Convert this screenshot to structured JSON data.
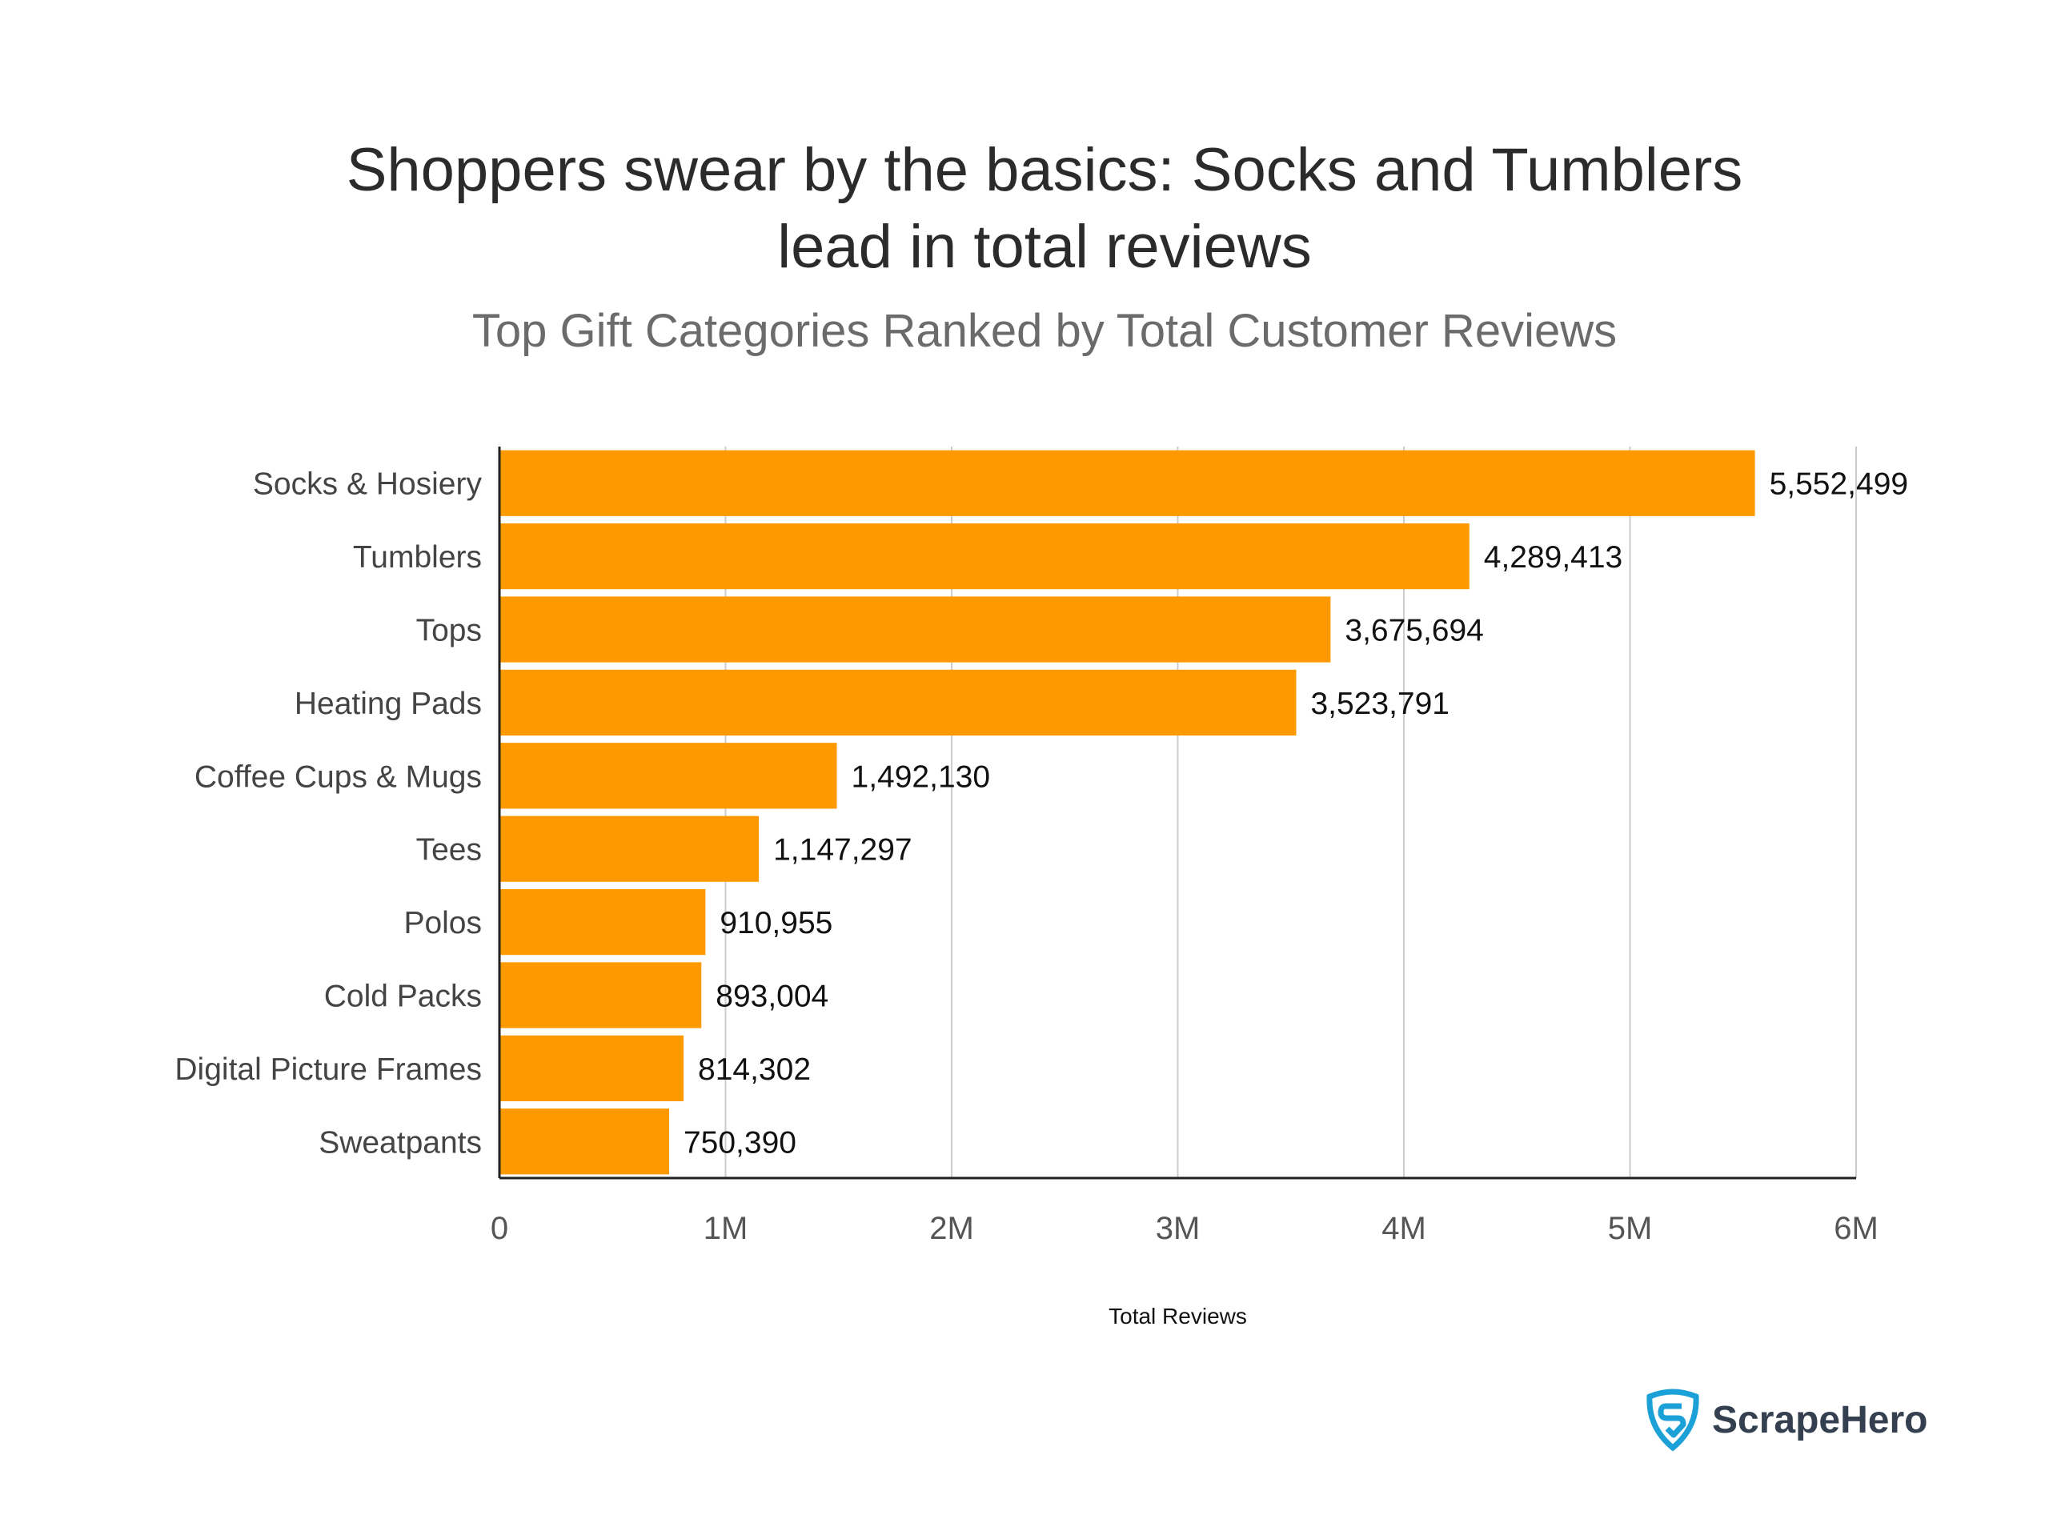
{
  "chart_data": {
    "type": "bar",
    "orientation": "horizontal",
    "title": "Shoppers swear by the basics: Socks and Tumblers lead in total reviews",
    "title_lines": [
      "Shoppers swear by the basics: Socks and Tumblers",
      "lead in total reviews"
    ],
    "subtitle": "Top Gift Categories Ranked by Total Customer Reviews",
    "xlabel": "Total Reviews",
    "ylabel": "",
    "categories": [
      "Socks & Hosiery",
      "Tumblers",
      "Tops",
      "Heating Pads",
      "Coffee Cups & Mugs",
      "Tees",
      "Polos",
      "Cold Packs",
      "Digital Picture Frames",
      "Sweatpants"
    ],
    "values": [
      5552499,
      4289413,
      3675694,
      3523791,
      1492130,
      1147297,
      910955,
      893004,
      814302,
      750390
    ],
    "data_labels": [
      "5,552,499",
      "4,289,413",
      "3,675,694",
      "3,523,791",
      "1,492,130",
      "1,147,297",
      "910,955",
      "893,004",
      "814,302",
      "750,390"
    ],
    "xlim": [
      0,
      6000000
    ],
    "xticks": [
      0,
      1000000,
      2000000,
      3000000,
      4000000,
      5000000,
      6000000
    ],
    "xtick_labels": [
      "0",
      "1M",
      "2M",
      "3M",
      "4M",
      "5M",
      "6M"
    ],
    "grid": "vertical",
    "bar_color": "#FF9900"
  },
  "logo": {
    "text": "ScrapeHero",
    "color": "#1BA1D8"
  }
}
